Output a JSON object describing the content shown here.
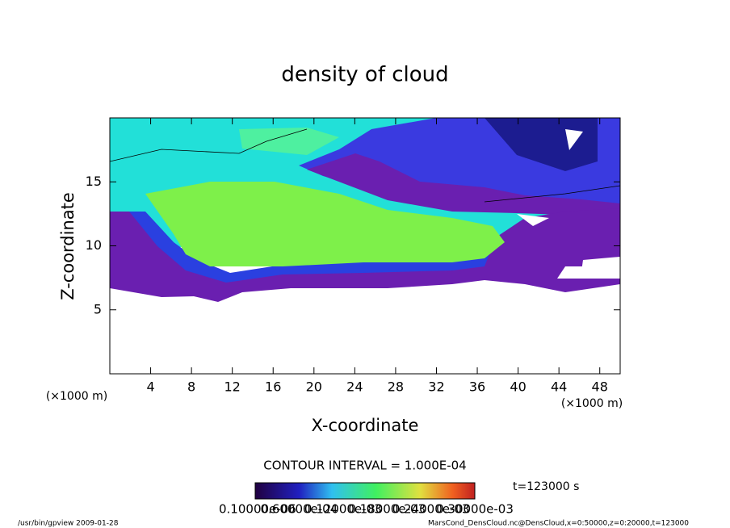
{
  "chart_data": {
    "type": "contour",
    "title": "density of cloud",
    "x_label": "X-coordinate",
    "y_label": "Z-coordinate",
    "x_unit": "(×1000 m)",
    "y_unit": "(×1000 m)",
    "xlim": [
      0,
      50
    ],
    "ylim": [
      0,
      20
    ],
    "xticks": [
      4,
      8,
      12,
      16,
      20,
      24,
      28,
      32,
      36,
      40,
      44,
      48
    ],
    "yticks": [
      5,
      10,
      15
    ],
    "contour_interval": "CONTOUR INTERVAL = 1.000E-04",
    "colorbar_labels": [
      "0.10000e-06",
      "0.60000e-04",
      "0.12000e-03",
      "0.18000e-03",
      "0.24000e-03",
      "0.30000e-03"
    ],
    "time": "t=123000 s",
    "footer_left": "/usr/bin/gpview   2009-01-28",
    "footer_right": "MarsCond_DensCloud.nc@DensCloud,x=0:50000,z=0:20000,t=123000"
  }
}
